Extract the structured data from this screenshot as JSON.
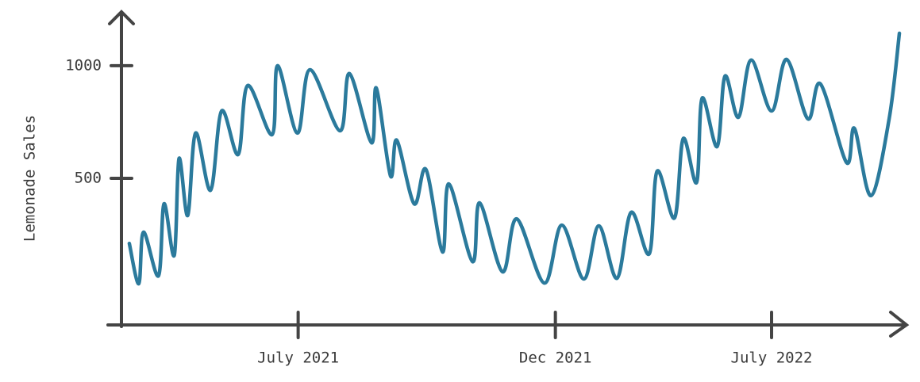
{
  "chart_data": {
    "type": "line",
    "y_label": "Lemonade Sales",
    "x": [
      1.7,
      2.9,
      3.5,
      5.4,
      6.1,
      7.4,
      8.0,
      9.1,
      10.1,
      12.0,
      13.4,
      15.5,
      16.7,
      19.8,
      20.5,
      23.0,
      24.6,
      28.4,
      29.6,
      32.4,
      33.0,
      34.8,
      35.6,
      37.8,
      39.3,
      41.4,
      42.2,
      45.2,
      46.1,
      49.0,
      50.8,
      54.3,
      56.5,
      59.3,
      61.2,
      63.5,
      65.3,
      67.6,
      68.6,
      70.8,
      71.9,
      73.6,
      74.3,
      76.2,
      77.2,
      78.9,
      80.5,
      83.1,
      85.0,
      87.7,
      89.3,
      92.6,
      93.6,
      95.7,
      98.0,
      99.3
    ],
    "values": [
      211,
      32,
      261,
      67,
      387,
      158,
      588,
      335,
      701,
      447,
      799,
      606,
      912,
      694,
      1000,
      701,
      982,
      711,
      965,
      658,
      901,
      511,
      669,
      387,
      539,
      173,
      475,
      130,
      391,
      85,
      320,
      35,
      292,
      53,
      289,
      56,
      349,
      165,
      532,
      324,
      676,
      482,
      856,
      641,
      954,
      771,
      1025,
      799,
      1028,
      764,
      919,
      570,
      722,
      423,
      764,
      1144
    ],
    "color": "#2b7a9c",
    "xlim": [
      0,
      100
    ],
    "xticks": [
      {
        "value": 23.1,
        "label": "July 2021"
      },
      {
        "value": 55.7,
        "label": "Dec 2021"
      },
      {
        "value": 83.1,
        "label": "July 2022"
      }
    ],
    "ylim": [
      -151,
      1239
    ],
    "yticks": [
      500,
      1000
    ]
  }
}
